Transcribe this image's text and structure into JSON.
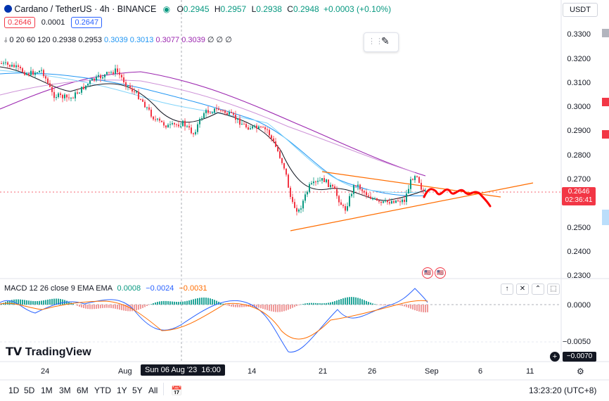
{
  "header": {
    "symbol": "Cardano / TetherUS · 4h · BINANCE",
    "open_label": "O",
    "open": "0.2945",
    "high_label": "H",
    "high": "0.2957",
    "low_label": "L",
    "low": "0.2938",
    "close_label": "C",
    "close": "0.2948",
    "change": "+0.0003 (+0.10%)",
    "bid": "0.2646",
    "spread": "0.0001",
    "ask": "0.2647",
    "ma_label": "0 20 60 120",
    "ma_values": [
      "0.2938",
      "0.2953",
      "0.3039",
      "0.3013",
      "0.3077",
      "0.3039"
    ],
    "ma_tail": "∅ ∅ ∅",
    "currency": "USDT"
  },
  "price_axis": [
    "0.3300",
    "0.3200",
    "0.3100",
    "0.3000",
    "0.2900",
    "0.2800",
    "0.2700",
    "0.2600",
    "0.2500",
    "0.2400",
    "0.2300"
  ],
  "last_price": {
    "price": "0.2646",
    "countdown": "02:36:41"
  },
  "macd": {
    "label": "MACD 12 26 close 9 EMA EMA",
    "v1": "0.0008",
    "v2": "−0.0024",
    "v3": "−0.0031",
    "axis": [
      "0.0000",
      "−0.0050"
    ],
    "current": "−0.0070"
  },
  "time_axis": [
    "24",
    "Aug",
    "14",
    "21",
    "26",
    "Sep",
    "6",
    "11"
  ],
  "crosshair_time": "Sun 06 Aug '23  16:00",
  "branding": "TradingView",
  "timeframes": [
    "1D",
    "5D",
    "1M",
    "3M",
    "6M",
    "YTD",
    "1Y",
    "5Y",
    "All"
  ],
  "clock": "13:23:20 (UTC+8)",
  "colors": {
    "up": "#089981",
    "down": "#f23645",
    "ma_purple": "#9c27b0",
    "ma_blue": "#2196f3",
    "forecast": "#ff0000",
    "trendline": "#ff6d00"
  }
}
